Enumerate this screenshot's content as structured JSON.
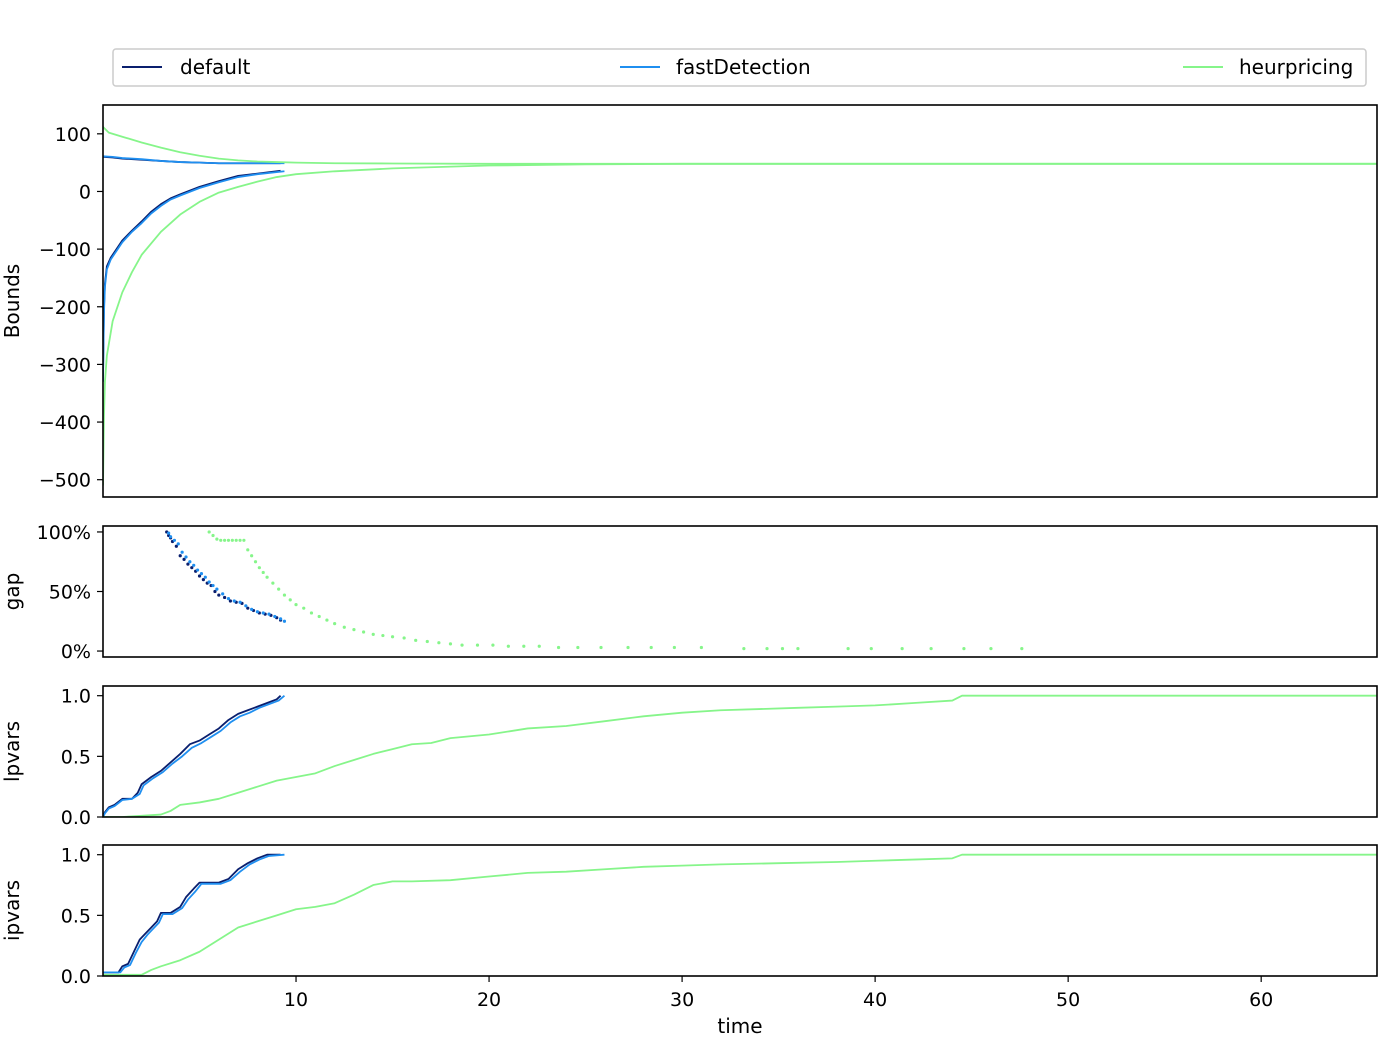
{
  "legend": {
    "placement": "top, above plots",
    "entries": [
      {
        "label": "default",
        "color": "#0a1f6e"
      },
      {
        "label": "fastDetection",
        "color": "#1f8ff0"
      },
      {
        "label": "heurpricing",
        "color": "#86f58a"
      }
    ]
  },
  "chart_data": [
    {
      "type": "line",
      "ylabel": "Bounds",
      "xlim": [
        0,
        66
      ],
      "ylim": [
        -530,
        150
      ],
      "yticks": [
        100,
        0,
        -100,
        -200,
        -300,
        -400,
        -500
      ],
      "ytick_labels": [
        "100",
        "0",
        "−100",
        "−200",
        "−300",
        "−400",
        "−500"
      ],
      "series": [
        {
          "name": "default",
          "color": "#0a1f6e",
          "part": "upper",
          "x": [
            0,
            0.5,
            1,
            2,
            3,
            4,
            5,
            6,
            7,
            8,
            9.2
          ],
          "y": [
            60,
            59,
            57,
            55,
            53,
            51,
            50,
            49,
            49,
            49,
            49
          ]
        },
        {
          "name": "default",
          "color": "#0a1f6e",
          "part": "lower",
          "x": [
            0,
            0.05,
            0.1,
            0.2,
            0.4,
            0.7,
            1.0,
            1.5,
            2.0,
            2.5,
            3.0,
            3.5,
            4.0,
            5.0,
            6.0,
            7.0,
            8.0,
            9.2
          ],
          "y": [
            -320,
            -200,
            -160,
            -130,
            -115,
            -100,
            -85,
            -68,
            -52,
            -35,
            -22,
            -12,
            -5,
            8,
            18,
            27,
            31,
            36
          ]
        },
        {
          "name": "fastDetection",
          "color": "#1f8ff0",
          "part": "upper",
          "x": [
            0,
            0.5,
            1,
            2,
            3,
            4,
            5,
            6,
            7,
            8,
            9.4
          ],
          "y": [
            61,
            60,
            58,
            56,
            53,
            51,
            50,
            49,
            49,
            49,
            49
          ]
        },
        {
          "name": "fastDetection",
          "color": "#1f8ff0",
          "part": "lower",
          "x": [
            0,
            0.05,
            0.1,
            0.2,
            0.4,
            0.7,
            1.0,
            1.5,
            2.0,
            2.5,
            3.0,
            3.5,
            4.0,
            5.0,
            6.0,
            7.0,
            8.0,
            9.4
          ],
          "y": [
            -330,
            -210,
            -165,
            -135,
            -118,
            -103,
            -88,
            -70,
            -55,
            -38,
            -25,
            -14,
            -7,
            6,
            16,
            25,
            30,
            35
          ]
        },
        {
          "name": "heurpricing",
          "color": "#86f58a",
          "part": "upper",
          "x": [
            0,
            0.3,
            1,
            2,
            3,
            4,
            5,
            6,
            7,
            8,
            9,
            10,
            12,
            15,
            20,
            30,
            66
          ],
          "y": [
            112,
            102,
            95,
            85,
            76,
            68,
            62,
            57,
            54,
            52,
            51,
            50,
            49,
            48.5,
            48,
            48,
            48
          ]
        },
        {
          "name": "heurpricing",
          "color": "#86f58a",
          "part": "lower",
          "x": [
            0,
            0.05,
            0.1,
            0.2,
            0.5,
            1,
            1.5,
            2,
            3,
            4,
            5,
            6,
            7,
            8,
            9,
            10,
            12,
            15,
            20,
            25,
            30,
            66
          ],
          "y": [
            -510,
            -390,
            -330,
            -285,
            -225,
            -175,
            -140,
            -110,
            -70,
            -40,
            -18,
            -2,
            8,
            17,
            25,
            30,
            35,
            40,
            45,
            47,
            48,
            48
          ]
        }
      ]
    },
    {
      "type": "scatter",
      "ylabel": "gap",
      "xlim": [
        0,
        66
      ],
      "ylim": [
        -5,
        105
      ],
      "yticks": [
        100,
        50,
        0
      ],
      "ytick_labels": [
        "100%",
        "50%",
        "0%"
      ],
      "series": [
        {
          "name": "default",
          "color": "#0a1f6e",
          "x": [
            3.3,
            3.4,
            3.5,
            3.6,
            3.8,
            4.0,
            4.2,
            4.4,
            4.6,
            4.8,
            5.0,
            5.2,
            5.4,
            5.6,
            5.8,
            6.0,
            6.3,
            6.6,
            6.9,
            7.2,
            7.5,
            7.8,
            8.1,
            8.4,
            8.7,
            9.0,
            9.2
          ],
          "y": [
            100,
            97,
            95,
            92,
            88,
            80,
            77,
            73,
            70,
            67,
            63,
            60,
            57,
            55,
            50,
            47,
            45,
            42,
            41,
            40,
            36,
            34,
            32,
            31,
            30,
            28,
            26
          ]
        },
        {
          "name": "fastDetection",
          "color": "#1f8ff0",
          "x": [
            3.4,
            3.5,
            3.7,
            3.9,
            4.1,
            4.3,
            4.5,
            4.7,
            4.9,
            5.1,
            5.3,
            5.5,
            5.7,
            5.9,
            6.2,
            6.5,
            6.8,
            7.1,
            7.4,
            7.7,
            8.0,
            8.3,
            8.6,
            8.9,
            9.2,
            9.4
          ],
          "y": [
            99,
            96,
            93,
            90,
            83,
            79,
            75,
            72,
            68,
            65,
            62,
            58,
            55,
            52,
            48,
            44,
            42,
            41,
            38,
            35,
            33,
            32,
            31,
            29,
            27,
            25
          ]
        },
        {
          "name": "heurpricing",
          "color": "#86f58a",
          "x": [
            5.5,
            5.7,
            5.9,
            6.1,
            6.3,
            6.5,
            6.7,
            6.9,
            7.1,
            7.3,
            7.5,
            7.7,
            7.9,
            8.1,
            8.3,
            8.5,
            8.8,
            9.1,
            9.4,
            9.7,
            10.0,
            10.4,
            10.8,
            11.2,
            11.6,
            12.0,
            12.5,
            13.0,
            13.5,
            14.0,
            14.5,
            15.0,
            15.6,
            16.2,
            16.8,
            17.4,
            18.0,
            18.6,
            19.4,
            20.2,
            21.0,
            21.8,
            22.6,
            23.6,
            24.6,
            25.8,
            27.2,
            28.4,
            29.6,
            31.0,
            33.2,
            34.4,
            35.2,
            36.0,
            38.6,
            39.8,
            41.4,
            42.9,
            44.6,
            46.0,
            47.6
          ],
          "y": [
            100,
            97,
            94,
            93,
            93,
            93,
            93,
            93,
            93,
            93,
            85,
            80,
            75,
            70,
            66,
            62,
            57,
            52,
            47,
            43,
            39,
            36,
            32,
            29,
            26,
            23,
            20,
            18,
            16,
            14,
            13,
            12,
            11,
            9,
            8,
            7,
            6,
            5,
            5,
            5,
            4,
            4,
            4,
            3,
            3,
            3,
            3,
            3,
            3,
            3,
            2,
            2,
            2,
            2,
            2,
            2,
            2,
            2,
            2,
            2,
            2
          ]
        }
      ]
    },
    {
      "type": "line",
      "ylabel": "lpvars",
      "xlim": [
        0,
        66
      ],
      "ylim": [
        0,
        1.08
      ],
      "yticks": [
        1.0,
        0.5,
        0.0
      ],
      "ytick_labels": [
        "1.0",
        "0.5",
        "0.0"
      ],
      "series": [
        {
          "name": "default",
          "color": "#0a1f6e",
          "x": [
            0,
            0.1,
            0.3,
            0.6,
            1.0,
            1.5,
            1.8,
            2.0,
            2.5,
            3.0,
            3.5,
            4.0,
            4.5,
            5.0,
            5.5,
            6.0,
            6.5,
            7.0,
            7.5,
            8.0,
            8.5,
            9.0,
            9.2
          ],
          "y": [
            0,
            0.04,
            0.08,
            0.1,
            0.15,
            0.15,
            0.2,
            0.27,
            0.33,
            0.38,
            0.45,
            0.52,
            0.6,
            0.63,
            0.68,
            0.73,
            0.8,
            0.85,
            0.88,
            0.91,
            0.94,
            0.97,
            1.0
          ]
        },
        {
          "name": "fastDetection",
          "color": "#1f8ff0",
          "x": [
            0,
            0.1,
            0.3,
            0.6,
            1.0,
            1.5,
            1.9,
            2.1,
            2.6,
            3.1,
            3.6,
            4.1,
            4.6,
            5.1,
            5.6,
            6.1,
            6.6,
            7.1,
            7.6,
            8.1,
            8.6,
            9.1,
            9.4
          ],
          "y": [
            0,
            0.03,
            0.07,
            0.09,
            0.14,
            0.15,
            0.19,
            0.26,
            0.32,
            0.37,
            0.44,
            0.5,
            0.57,
            0.61,
            0.66,
            0.71,
            0.78,
            0.83,
            0.86,
            0.9,
            0.93,
            0.96,
            1.0
          ]
        },
        {
          "name": "heurpricing",
          "color": "#86f58a",
          "x": [
            0,
            1.0,
            2.0,
            3.0,
            3.5,
            4.0,
            5.0,
            6.0,
            7.0,
            8.0,
            9.0,
            10.0,
            11.0,
            12.0,
            13.0,
            14.0,
            15.0,
            16.0,
            17.0,
            18.0,
            20.0,
            22.0,
            24.0,
            26.0,
            28.0,
            30.0,
            32.0,
            34.0,
            36.0,
            38.0,
            40.0,
            42.0,
            44.0,
            44.5,
            50.0,
            55.0,
            60.0,
            66.0
          ],
          "y": [
            0,
            0,
            0.01,
            0.02,
            0.05,
            0.1,
            0.12,
            0.15,
            0.2,
            0.25,
            0.3,
            0.33,
            0.36,
            0.42,
            0.47,
            0.52,
            0.56,
            0.6,
            0.61,
            0.65,
            0.68,
            0.73,
            0.75,
            0.79,
            0.83,
            0.86,
            0.88,
            0.89,
            0.9,
            0.91,
            0.92,
            0.94,
            0.96,
            1.0,
            1.0,
            1.0,
            1.0,
            1.0
          ]
        }
      ]
    },
    {
      "type": "line",
      "ylabel": "ipvars",
      "xlim": [
        0,
        66
      ],
      "ylim": [
        0,
        1.08
      ],
      "yticks": [
        1.0,
        0.5,
        0.0
      ],
      "ytick_labels": [
        "1.0",
        "0.5",
        "0.0"
      ],
      "xlabel": "time",
      "xticks": [
        10,
        20,
        30,
        40,
        50,
        60
      ],
      "xtick_labels": [
        "10",
        "20",
        "30",
        "40",
        "50",
        "60"
      ],
      "series": [
        {
          "name": "default",
          "color": "#0a1f6e",
          "x": [
            0,
            0.8,
            1.0,
            1.3,
            1.6,
            1.9,
            2.2,
            2.5,
            2.8,
            3.0,
            3.5,
            4.0,
            4.3,
            4.7,
            5.0,
            5.5,
            6.0,
            6.5,
            7.0,
            7.5,
            8.0,
            8.5,
            9.2
          ],
          "y": [
            0.03,
            0.03,
            0.08,
            0.1,
            0.2,
            0.3,
            0.35,
            0.4,
            0.45,
            0.52,
            0.52,
            0.57,
            0.65,
            0.72,
            0.77,
            0.77,
            0.77,
            0.8,
            0.88,
            0.93,
            0.97,
            1.0,
            1.0
          ]
        },
        {
          "name": "fastDetection",
          "color": "#1f8ff0",
          "x": [
            0,
            0.9,
            1.1,
            1.4,
            1.7,
            2.0,
            2.3,
            2.6,
            2.9,
            3.1,
            3.6,
            4.1,
            4.4,
            4.8,
            5.1,
            5.6,
            6.1,
            6.6,
            7.1,
            7.6,
            8.1,
            8.6,
            9.4
          ],
          "y": [
            0.03,
            0.03,
            0.07,
            0.09,
            0.19,
            0.28,
            0.34,
            0.39,
            0.44,
            0.51,
            0.51,
            0.56,
            0.63,
            0.7,
            0.76,
            0.76,
            0.76,
            0.79,
            0.86,
            0.92,
            0.96,
            0.99,
            1.0
          ]
        },
        {
          "name": "heurpricing",
          "color": "#86f58a",
          "x": [
            0,
            2.0,
            2.5,
            3.0,
            4.0,
            5.0,
            6.0,
            7.0,
            8.0,
            9.0,
            10.0,
            11.0,
            12.0,
            13.0,
            14.0,
            15.0,
            16.0,
            18.0,
            20.0,
            22.0,
            24.0,
            26.0,
            28.0,
            30.0,
            32.0,
            35.0,
            38.0,
            40.0,
            42.0,
            44.0,
            44.5,
            50.0,
            55.0,
            60.0,
            66.0
          ],
          "y": [
            0.01,
            0.01,
            0.05,
            0.08,
            0.13,
            0.2,
            0.3,
            0.4,
            0.45,
            0.5,
            0.55,
            0.57,
            0.6,
            0.67,
            0.75,
            0.78,
            0.78,
            0.79,
            0.82,
            0.85,
            0.86,
            0.88,
            0.9,
            0.91,
            0.92,
            0.93,
            0.94,
            0.95,
            0.96,
            0.97,
            1.0,
            1.0,
            1.0,
            1.0,
            1.0
          ]
        }
      ]
    }
  ]
}
